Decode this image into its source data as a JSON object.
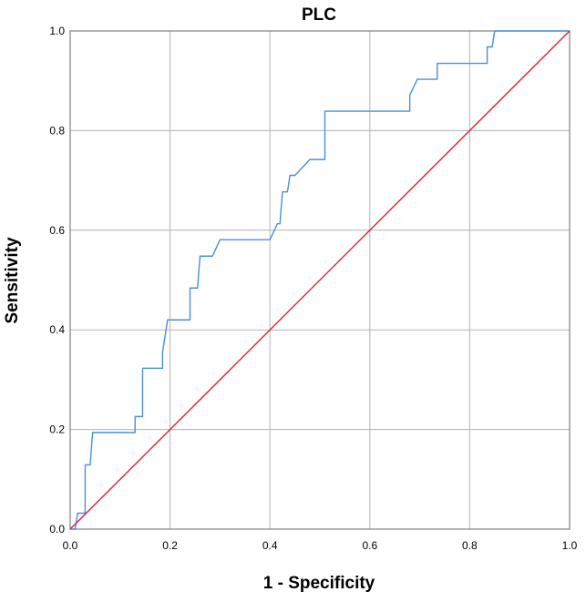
{
  "chart_data": {
    "type": "line",
    "title": "PLC",
    "xlabel": "1 - Specificity",
    "ylabel": "Sensitivity",
    "xlim": [
      0,
      1
    ],
    "ylim": [
      0,
      1
    ],
    "x_ticks": [
      "0.0",
      "0.2",
      "0.4",
      "0.6",
      "0.8",
      "1.0"
    ],
    "y_ticks": [
      "0.0",
      "0.2",
      "0.4",
      "0.6",
      "0.8",
      "1.0"
    ],
    "tick_values": [
      0,
      0.2,
      0.4,
      0.6,
      0.8,
      1.0
    ],
    "grid": true,
    "legend": false,
    "series": [
      {
        "name": "ROC curve",
        "color": "#4a8fdc",
        "points": [
          [
            0.0,
            0.0
          ],
          [
            0.01,
            0.0
          ],
          [
            0.015,
            0.032
          ],
          [
            0.03,
            0.032
          ],
          [
            0.03,
            0.129
          ],
          [
            0.04,
            0.129
          ],
          [
            0.045,
            0.194
          ],
          [
            0.13,
            0.194
          ],
          [
            0.13,
            0.226
          ],
          [
            0.145,
            0.226
          ],
          [
            0.145,
            0.323
          ],
          [
            0.185,
            0.323
          ],
          [
            0.185,
            0.355
          ],
          [
            0.195,
            0.42
          ],
          [
            0.24,
            0.42
          ],
          [
            0.24,
            0.484
          ],
          [
            0.255,
            0.484
          ],
          [
            0.26,
            0.548
          ],
          [
            0.285,
            0.548
          ],
          [
            0.3,
            0.581
          ],
          [
            0.4,
            0.581
          ],
          [
            0.415,
            0.613
          ],
          [
            0.42,
            0.613
          ],
          [
            0.425,
            0.677
          ],
          [
            0.435,
            0.677
          ],
          [
            0.44,
            0.71
          ],
          [
            0.45,
            0.71
          ],
          [
            0.48,
            0.742
          ],
          [
            0.51,
            0.742
          ],
          [
            0.51,
            0.839
          ],
          [
            0.68,
            0.839
          ],
          [
            0.68,
            0.871
          ],
          [
            0.695,
            0.903
          ],
          [
            0.735,
            0.903
          ],
          [
            0.735,
            0.935
          ],
          [
            0.835,
            0.935
          ],
          [
            0.835,
            0.968
          ],
          [
            0.845,
            0.968
          ],
          [
            0.85,
            1.0
          ],
          [
            1.0,
            1.0
          ]
        ]
      },
      {
        "name": "Reference line",
        "color": "#d6203e",
        "points": [
          [
            0.0,
            0.0
          ],
          [
            1.0,
            1.0
          ]
        ]
      }
    ]
  },
  "colors": {
    "grid": "#b3b3b3",
    "frame": "#808080",
    "text": "#000000"
  }
}
